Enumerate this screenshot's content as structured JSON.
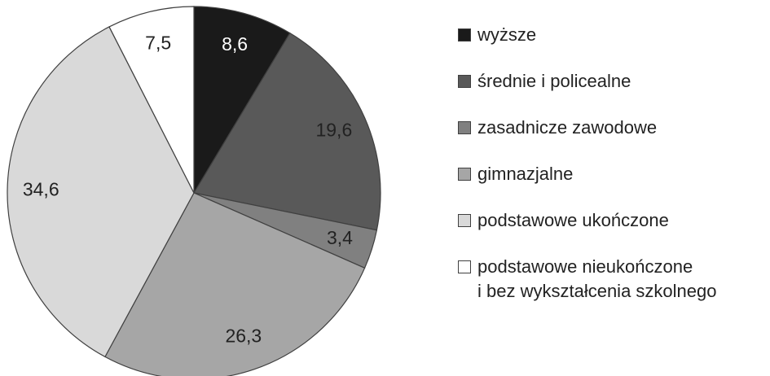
{
  "chart_data": {
    "type": "pie",
    "categories": [
      "wyższe",
      "średnie i policealne",
      "zasadnicze zawodowe",
      "gimnazjalne",
      "podstawowe ukończone",
      "podstawowe nieukończone\ni bez wykształcenia szkolnego"
    ],
    "values": [
      8.6,
      19.6,
      3.4,
      26.3,
      34.6,
      7.5
    ],
    "value_labels": [
      "8,6",
      "19,6",
      "3,4",
      "26,3",
      "34,6",
      "7,5"
    ],
    "colors": [
      "#1a1a1a",
      "#595959",
      "#808080",
      "#a6a6a6",
      "#d9d9d9",
      "#ffffff"
    ],
    "legend": "right"
  }
}
